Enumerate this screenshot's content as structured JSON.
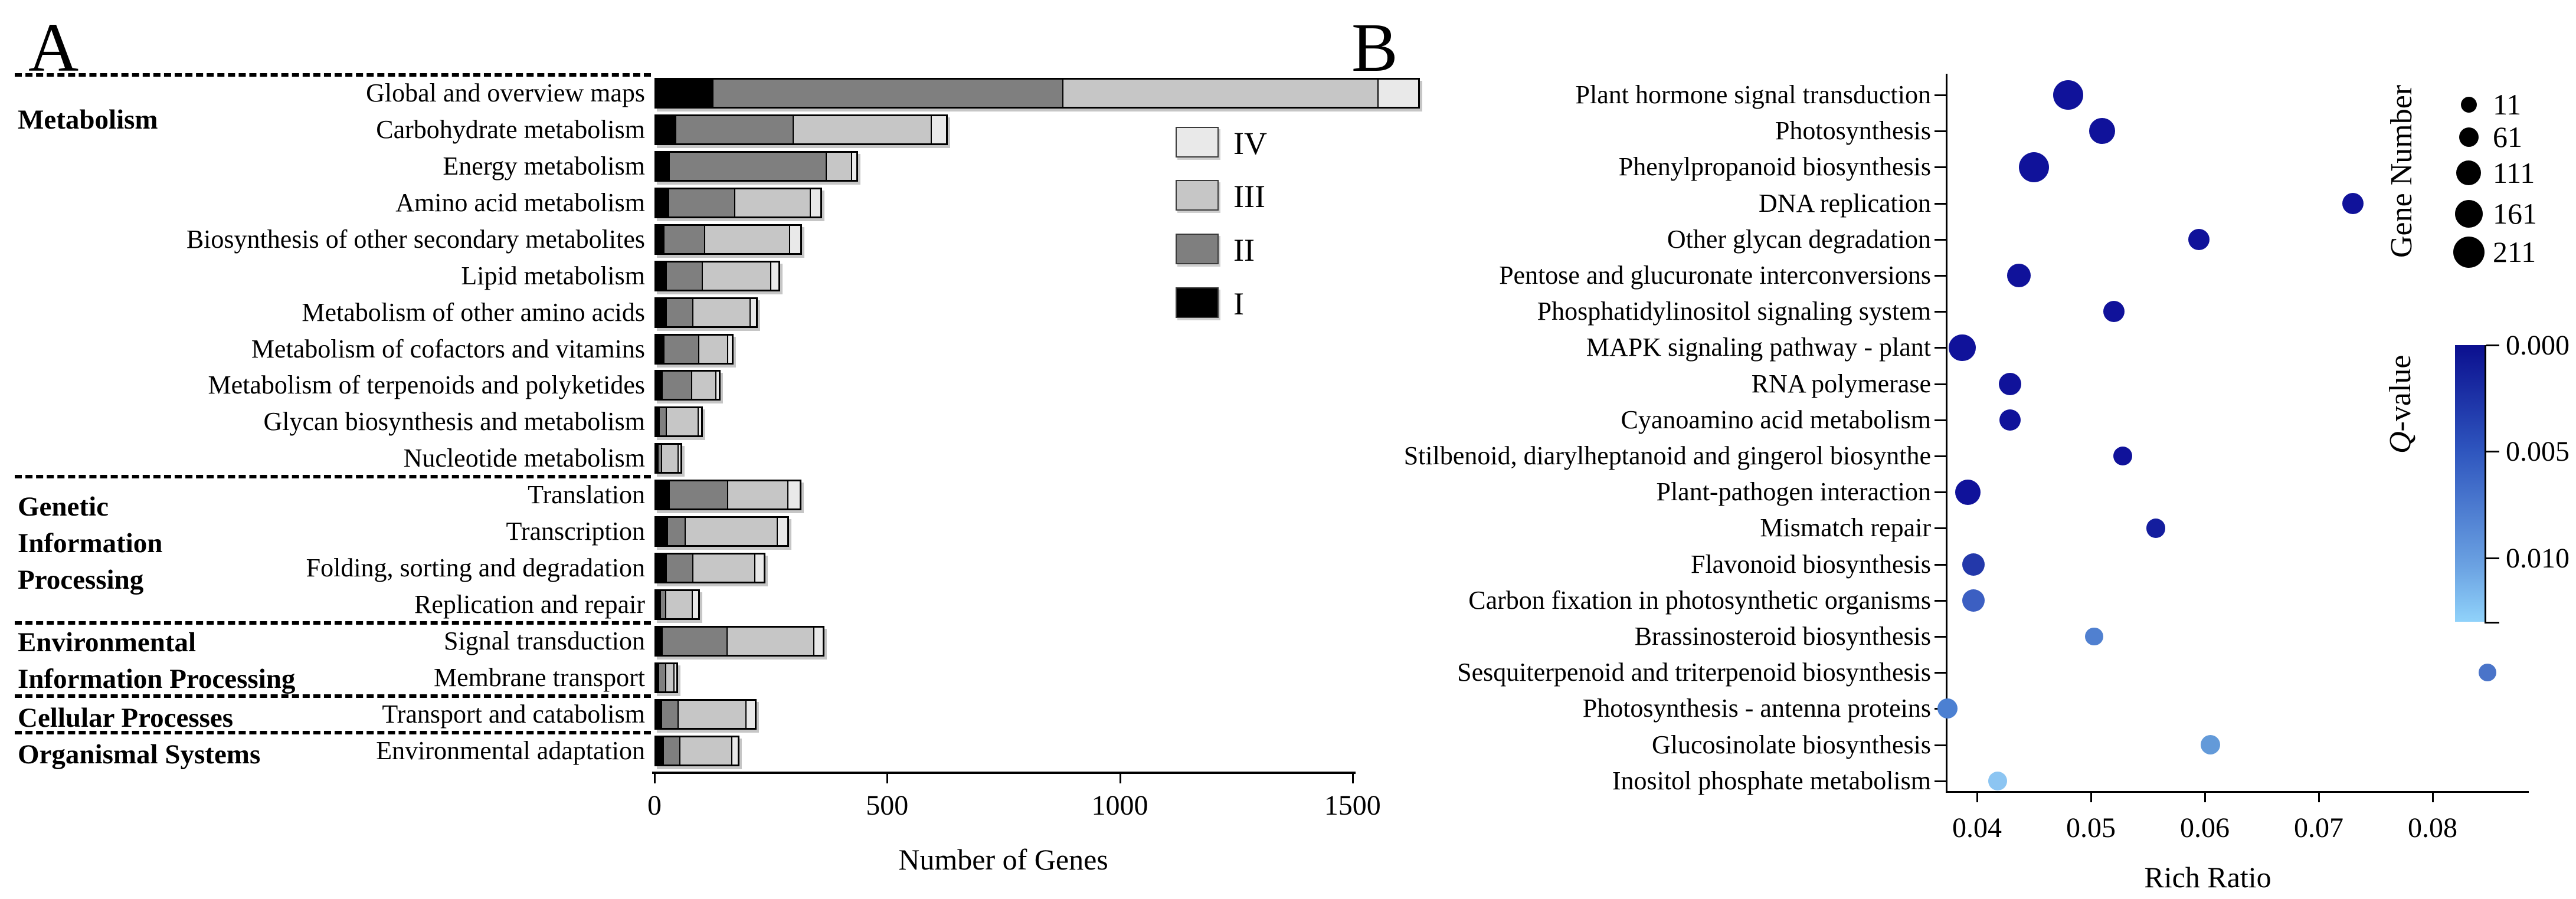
{
  "chart_data": [
    {
      "type": "bar",
      "panel_letter": "A",
      "orientation": "horizontal-stacked",
      "xlabel": "Number of Genes",
      "x_ticks": [
        "0",
        "500",
        "1000",
        "1500"
      ],
      "x_tick_values": [
        0,
        500,
        1000,
        1500
      ],
      "xlim": [
        0,
        1650
      ],
      "grid": false,
      "legend_position": "right-inside",
      "series_levels": [
        {
          "name": "I",
          "color": "#000000"
        },
        {
          "name": "II",
          "color": "#7f7f7f"
        },
        {
          "name": "III",
          "color": "#c6c6c6"
        },
        {
          "name": "IV",
          "color": "#e9e9e9"
        }
      ],
      "legend_order": [
        "IV",
        "III",
        "II",
        "I"
      ],
      "categories": [
        "Global and overview maps",
        "Carbohydrate metabolism",
        "Energy metabolism",
        "Amino acid metabolism",
        "Biosynthesis of other secondary metabolites",
        "Lipid metabolism",
        "Metabolism of other amino acids",
        "Metabolism of cofactors and vitamins",
        "Metabolism of terpenoids and polyketides",
        "Glycan biosynthesis and metabolism",
        "Nucleotide metabolism",
        "Translation",
        "Transcription",
        "Folding, sorting and degradation",
        "Replication and repair",
        "Signal transduction",
        "Membrane transport",
        "Transport and catabolism",
        "Environmental adaptation"
      ],
      "values_I_II_III_IV": [
        [
          120,
          750,
          675,
          85
        ],
        [
          40,
          250,
          295,
          30
        ],
        [
          27,
          335,
          52,
          8
        ],
        [
          25,
          140,
          160,
          20
        ],
        [
          15,
          85,
          180,
          22
        ],
        [
          20,
          75,
          145,
          15
        ],
        [
          20,
          55,
          120,
          12
        ],
        [
          15,
          72,
          60,
          8
        ],
        [
          12,
          60,
          50,
          5
        ],
        [
          5,
          13,
          66,
          5
        ],
        [
          3,
          4,
          33,
          5
        ],
        [
          27,
          123,
          127,
          23
        ],
        [
          23,
          35,
          196,
          20
        ],
        [
          20,
          55,
          130,
          18
        ],
        [
          7,
          10,
          54,
          11
        ],
        [
          12,
          136,
          184,
          18
        ],
        [
          4,
          12,
          16,
          3
        ],
        [
          10,
          33,
          143,
          18
        ],
        [
          14,
          33,
          109,
          11
        ]
      ],
      "category_groups": [
        {
          "label_lines": [
            "Metabolism"
          ],
          "rows": [
            0,
            10
          ]
        },
        {
          "label_lines": [
            "Genetic",
            "Information",
            "Processing"
          ],
          "rows": [
            11,
            14
          ]
        },
        {
          "label_lines": [
            "Environmental",
            "Information Processing"
          ],
          "rows": [
            15,
            16
          ]
        },
        {
          "label_lines": [
            "Cellular Processes"
          ],
          "rows": [
            17,
            17
          ]
        },
        {
          "label_lines": [
            "Organismal Systems"
          ],
          "rows": [
            18,
            18
          ]
        }
      ]
    },
    {
      "type": "scatter",
      "panel_letter": "B",
      "xlabel": "Rich Ratio",
      "x_ticks": [
        "0.04",
        "0.05",
        "0.06",
        "0.07",
        "0.08"
      ],
      "x_tick_values": [
        0.04,
        0.05,
        0.06,
        0.07,
        0.08
      ],
      "xlim": [
        0.0374,
        0.0878
      ],
      "grid": false,
      "points": [
        {
          "pathway": "Plant hormone signal transduction",
          "rich_ratio": 0.048,
          "gene_number": 190,
          "q_value": 0.0002,
          "color": "#10129a"
        },
        {
          "pathway": "Photosynthesis",
          "rich_ratio": 0.051,
          "gene_number": 140,
          "q_value": 0.0003,
          "color": "#10129a"
        },
        {
          "pathway": "Phenylpropanoid biosynthesis",
          "rich_ratio": 0.045,
          "gene_number": 195,
          "q_value": 0.0002,
          "color": "#10129a"
        },
        {
          "pathway": "DNA replication",
          "rich_ratio": 0.073,
          "gene_number": 80,
          "q_value": 0.0006,
          "color": "#10129a"
        },
        {
          "pathway": "Other glycan degradation",
          "rich_ratio": 0.0595,
          "gene_number": 80,
          "q_value": 0.0006,
          "color": "#10129a"
        },
        {
          "pathway": "Pentose and glucuronate interconversions",
          "rich_ratio": 0.0437,
          "gene_number": 110,
          "q_value": 0.0006,
          "color": "#10129a"
        },
        {
          "pathway": "Phosphatidylinositol signaling system",
          "rich_ratio": 0.052,
          "gene_number": 80,
          "q_value": 0.0008,
          "color": "#10129a"
        },
        {
          "pathway": "MAPK signaling pathway - plant",
          "rich_ratio": 0.0387,
          "gene_number": 155,
          "q_value": 0.0002,
          "color": "#10129a"
        },
        {
          "pathway": "RNA polymerase",
          "rich_ratio": 0.0429,
          "gene_number": 95,
          "q_value": 0.0008,
          "color": "#10129a"
        },
        {
          "pathway": "Cyanoamino acid metabolism",
          "rich_ratio": 0.0429,
          "gene_number": 80,
          "q_value": 0.0008,
          "color": "#10129a"
        },
        {
          "pathway": "Stilbenoid, diarylheptanoid and gingerol biosynthe",
          "rich_ratio": 0.0528,
          "gene_number": 50,
          "q_value": 0.001,
          "color": "#10129a"
        },
        {
          "pathway": "Plant-pathogen interaction",
          "rich_ratio": 0.0392,
          "gene_number": 135,
          "q_value": 0.0004,
          "color": "#10129a"
        },
        {
          "pathway": "Mismatch repair",
          "rich_ratio": 0.0557,
          "gene_number": 55,
          "q_value": 0.002,
          "color": "#141d9e"
        },
        {
          "pathway": "Flavonoid biosynthesis",
          "rich_ratio": 0.0397,
          "gene_number": 95,
          "q_value": 0.003,
          "color": "#2338aa"
        },
        {
          "pathway": "Carbon fixation in photosynthetic organisms",
          "rich_ratio": 0.0397,
          "gene_number": 95,
          "q_value": 0.0045,
          "color": "#3c5fc2"
        },
        {
          "pathway": "Brassinosteroid biosynthesis",
          "rich_ratio": 0.0503,
          "gene_number": 40,
          "q_value": 0.006,
          "color": "#5080d0"
        },
        {
          "pathway": "Sesquiterpenoid and triterpenoid biosynthesis",
          "rich_ratio": 0.0848,
          "gene_number": 35,
          "q_value": 0.0055,
          "color": "#4a74c9"
        },
        {
          "pathway": "Photosynthesis - antenna proteins",
          "rich_ratio": 0.0374,
          "gene_number": 65,
          "q_value": 0.0058,
          "color": "#4c80d2"
        },
        {
          "pathway": "Glucosinolate biosynthesis",
          "rich_ratio": 0.0605,
          "gene_number": 60,
          "q_value": 0.0075,
          "color": "#639ad9"
        },
        {
          "pathway": "Inositol phosphate metabolism",
          "rich_ratio": 0.0418,
          "gene_number": 50,
          "q_value": 0.0115,
          "color": "#8cc5f2"
        }
      ],
      "size_legend": {
        "title": "Gene Number",
        "entries": [
          {
            "label": "11",
            "value": 11,
            "diameter": 27
          },
          {
            "label": "61",
            "value": 61,
            "diameter": 33
          },
          {
            "label": "111",
            "value": 111,
            "diameter": 42
          },
          {
            "label": "161",
            "value": 161,
            "diameter": 47
          },
          {
            "label": "211",
            "value": 211,
            "diameter": 53
          }
        ],
        "dot_color": "#000000"
      },
      "color_legend": {
        "title_italic_part": "Q",
        "title_rest": "-value",
        "tick_labels": [
          "0.000",
          "0.005",
          "0.010"
        ],
        "tick_values": [
          0.0,
          0.005,
          0.01
        ],
        "range": [
          0.0,
          0.013
        ],
        "gradient_stops": [
          "#0b0f8f",
          "#2e55be",
          "#6ba2e2",
          "#90d2fa"
        ]
      }
    }
  ]
}
